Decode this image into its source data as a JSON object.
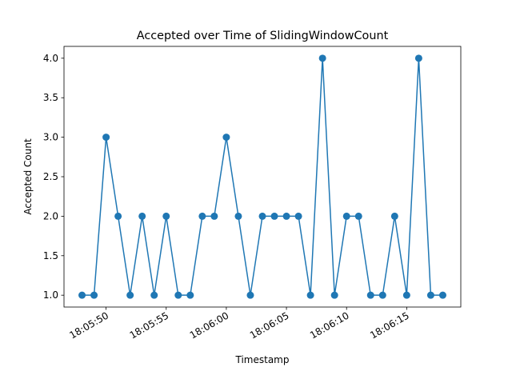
{
  "chart_data": {
    "type": "line",
    "title": "Accepted over Time of SlidingWindowCount",
    "xlabel": "Timestamp",
    "ylabel": "Accepted Count",
    "x_tick_labels": [
      "18:05:50",
      "18:05:55",
      "18:06:00",
      "18:06:05",
      "18:06:10",
      "18:06:15"
    ],
    "y_tick_labels": [
      "1.0",
      "1.5",
      "2.0",
      "2.5",
      "3.0",
      "3.5",
      "4.0"
    ],
    "ylim": [
      0.85,
      4.15
    ],
    "grid": false,
    "series": [
      {
        "color": "#1f77b4",
        "marker": "circle",
        "points": [
          [
            "18:05:48",
            1
          ],
          [
            "18:05:49",
            1
          ],
          [
            "18:05:50",
            3
          ],
          [
            "18:05:51",
            2
          ],
          [
            "18:05:52",
            1
          ],
          [
            "18:05:53",
            2
          ],
          [
            "18:05:54",
            1
          ],
          [
            "18:05:55",
            2
          ],
          [
            "18:05:56",
            1
          ],
          [
            "18:05:57",
            1
          ],
          [
            "18:05:58",
            2
          ],
          [
            "18:05:59",
            2
          ],
          [
            "18:06:00",
            3
          ],
          [
            "18:06:01",
            2
          ],
          [
            "18:06:02",
            1
          ],
          [
            "18:06:03",
            2
          ],
          [
            "18:06:04",
            2
          ],
          [
            "18:06:05",
            2
          ],
          [
            "18:06:06",
            2
          ],
          [
            "18:06:07",
            1
          ],
          [
            "18:06:08",
            4
          ],
          [
            "18:06:09",
            1
          ],
          [
            "18:06:10",
            2
          ],
          [
            "18:06:11",
            2
          ],
          [
            "18:06:12",
            1
          ],
          [
            "18:06:13",
            1
          ],
          [
            "18:06:14",
            2
          ],
          [
            "18:06:15",
            1
          ],
          [
            "18:06:16",
            4
          ],
          [
            "18:06:17",
            1
          ],
          [
            "18:06:18",
            1
          ]
        ]
      }
    ]
  }
}
